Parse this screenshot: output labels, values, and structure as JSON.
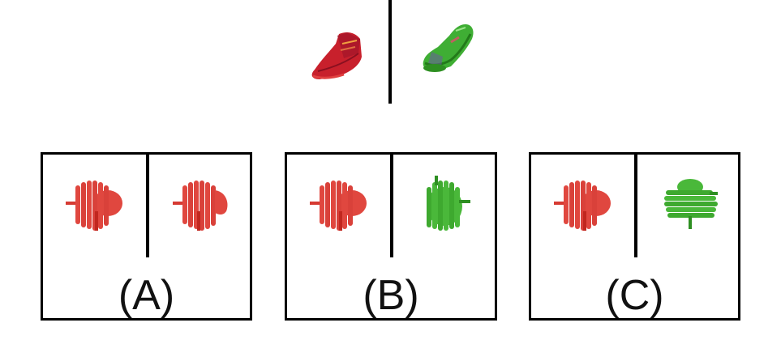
{
  "reference": {
    "left_shape": "red-shoe-icon",
    "right_shape": "green-shoe-icon"
  },
  "options": [
    {
      "label": "(A)",
      "left_shape": "red-coil-icon",
      "right_shape": "red-coil-icon"
    },
    {
      "label": "(B)",
      "left_shape": "red-coil-icon",
      "right_shape": "green-coil-icon"
    },
    {
      "label": "(C)",
      "left_shape": "red-coil-icon",
      "right_shape": "green-coil-rotated-icon"
    }
  ],
  "colors": {
    "red": "#e0473f",
    "red_dark": "#c1271f",
    "shoe_red": "#c8202c",
    "green": "#4ab83a",
    "green_dark": "#2e8f22",
    "divider": "#000000"
  }
}
